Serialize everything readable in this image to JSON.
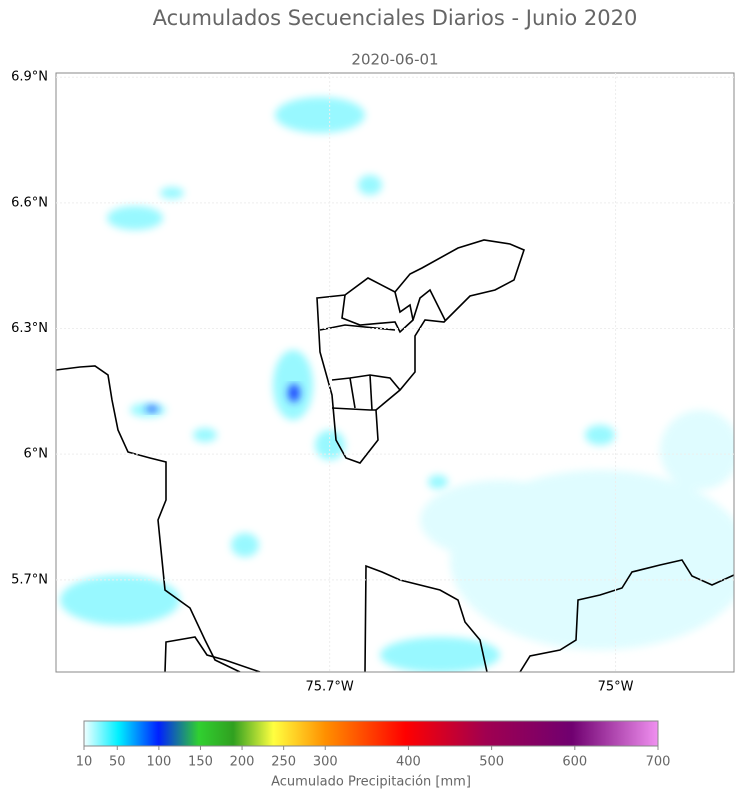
{
  "title": "Acumulados Secuenciales Diarios - Junio 2020",
  "map": {
    "subtitle": "2020-06-01",
    "xlim": [
      -76.37,
      -74.71
    ],
    "ylim": [
      5.48,
      6.91
    ],
    "xticks": [
      {
        "value": -75.7,
        "label": "75.7°W"
      },
      {
        "value": -75,
        "label": "75°W"
      }
    ],
    "yticks": [
      {
        "value": 6.9,
        "label": "6.9°N"
      },
      {
        "value": 6.6,
        "label": "6.6°N"
      },
      {
        "value": 6.3,
        "label": "6.3°N"
      },
      {
        "value": 6,
        "label": "6°N"
      },
      {
        "value": 5.7,
        "label": "5.7°N"
      }
    ]
  },
  "colorbar": {
    "lim": [
      10,
      700
    ],
    "ticks": [
      10,
      50,
      100,
      150,
      200,
      250,
      300,
      400,
      500,
      600,
      700
    ],
    "label": "Acumulado Precipitación [mm]"
  }
}
